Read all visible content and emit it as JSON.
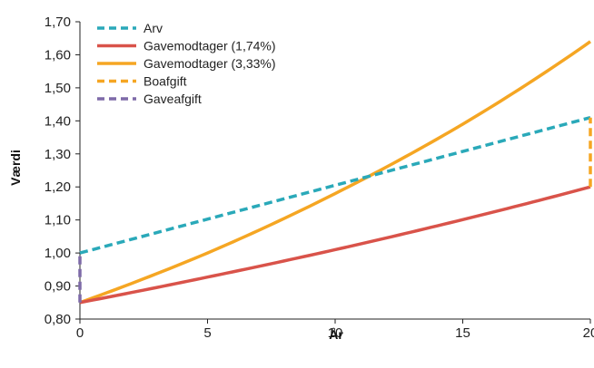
{
  "chart_data": {
    "type": "line",
    "title": "",
    "xlabel": "År",
    "ylabel": "Værdi",
    "xlim": [
      0,
      20
    ],
    "ylim": [
      0.8,
      1.7
    ],
    "x_ticks": [
      0,
      5,
      10,
      15,
      20
    ],
    "x_tick_labels": [
      "0",
      "5",
      "10",
      "15",
      "20"
    ],
    "y_ticks": [
      0.8,
      0.9,
      1.0,
      1.1,
      1.2,
      1.3,
      1.4,
      1.5,
      1.6,
      1.7
    ],
    "y_tick_labels": [
      "0,80",
      "0,90",
      "1,00",
      "1,10",
      "1,20",
      "1,30",
      "1,40",
      "1,50",
      "1,60",
      "1,70"
    ],
    "grid": false,
    "legend_position": "top-left",
    "series": [
      {
        "name": "Arv",
        "color": "#2aa9b9",
        "dash": "dashed",
        "x": [
          0,
          20
        ],
        "y": [
          1.0,
          1.41
        ]
      },
      {
        "name": "Gavemodtager (1,74%)",
        "color": "#d9534a",
        "dash": "solid",
        "x": [
          0,
          5,
          10,
          15,
          20
        ],
        "y": [
          0.85,
          0.927,
          1.01,
          1.101,
          1.2
        ]
      },
      {
        "name": "Gavemodtager (3,33%)",
        "color": "#f5a623",
        "dash": "solid",
        "x": [
          0,
          5,
          10,
          15,
          20
        ],
        "y": [
          0.85,
          1.0,
          1.18,
          1.39,
          1.64
        ]
      },
      {
        "name": "Boafgift",
        "color": "#f5a623",
        "dash": "dashed",
        "x": [
          20,
          20
        ],
        "y": [
          1.2,
          1.41
        ]
      },
      {
        "name": "Gaveafgift",
        "color": "#7e6aa8",
        "dash": "dashed",
        "x": [
          0,
          0
        ],
        "y": [
          0.85,
          1.0
        ]
      }
    ]
  }
}
